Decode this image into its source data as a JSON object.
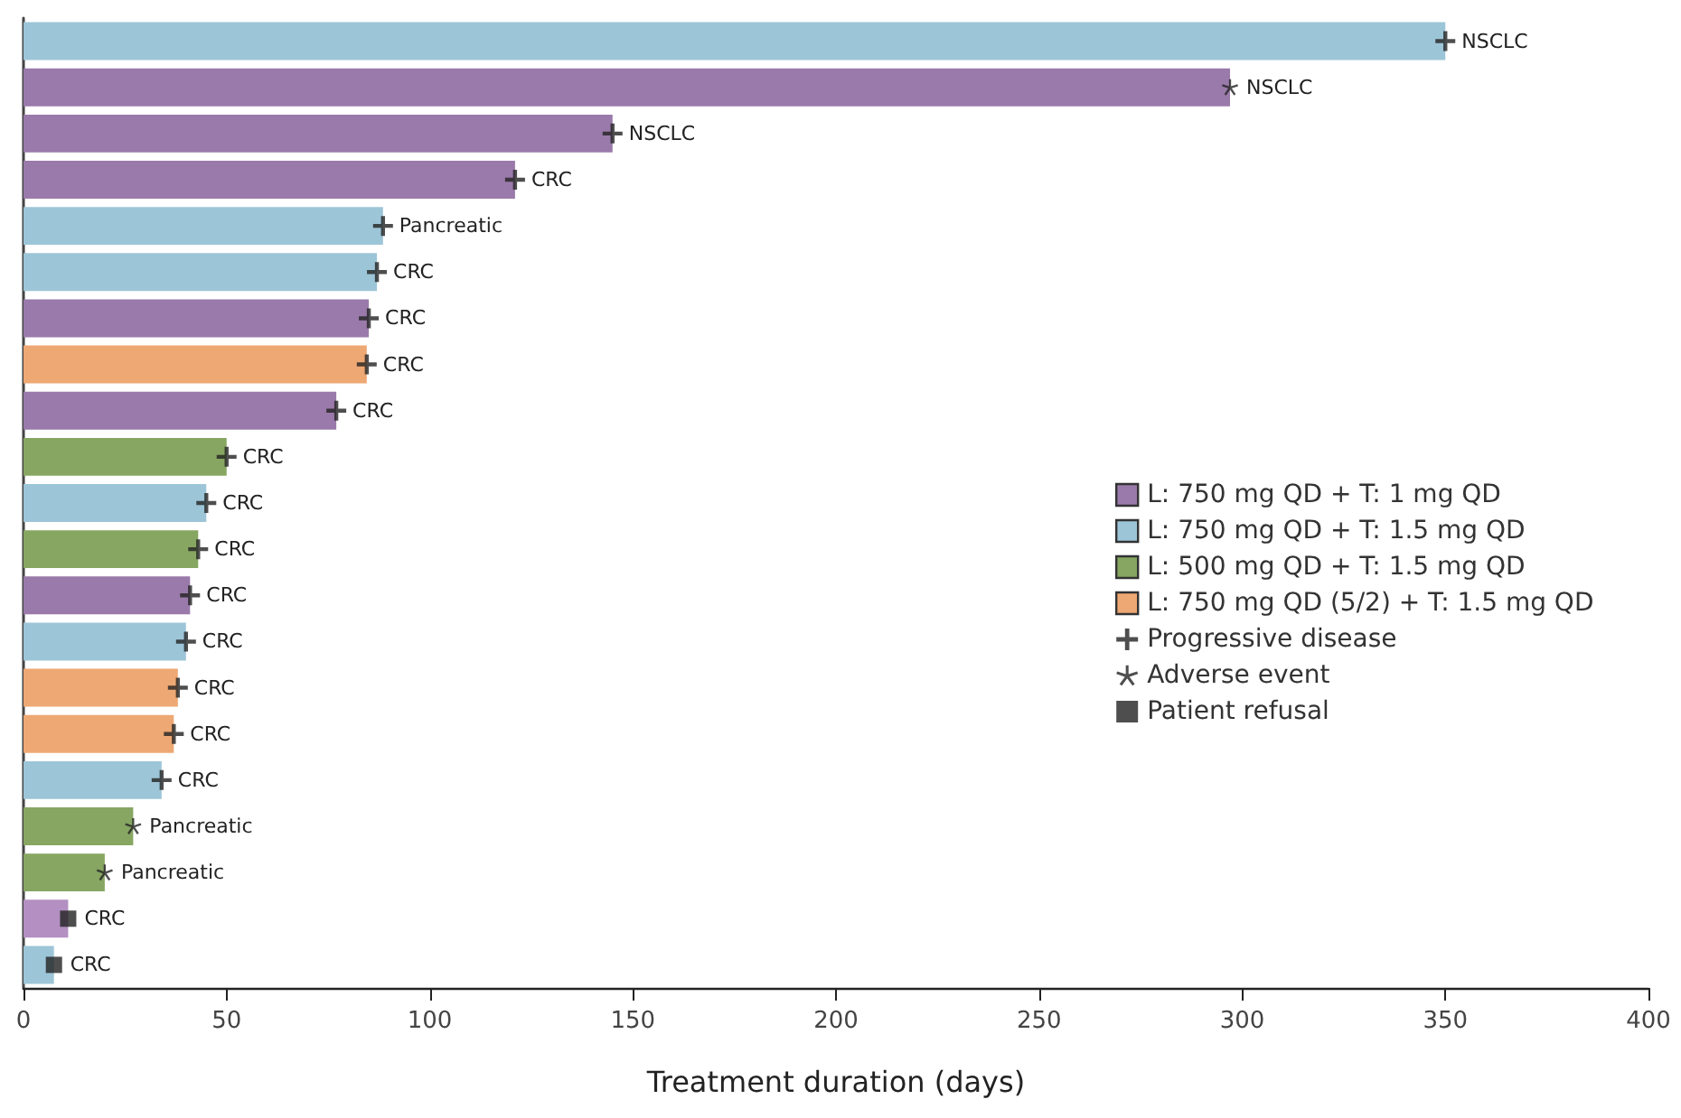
{
  "chart_data": {
    "type": "bar",
    "orientation": "horizontal",
    "xlabel": "Treatment duration (days)",
    "categories": [
      null,
      null,
      null,
      null,
      null,
      null,
      null,
      null,
      null,
      null,
      null,
      null,
      null,
      null,
      null,
      null,
      null,
      null,
      null,
      null,
      null
    ],
    "xlim": [
      0,
      400
    ],
    "xticks": [
      0,
      50,
      100,
      150,
      200,
      250,
      300,
      350,
      400
    ],
    "grid": false,
    "legend": "right",
    "series": [
      {
        "name": "L: 750 mg QD + T: 1 mg QD",
        "color": "#9a7aaa",
        "colors": [
          null,
          "#9a7aaa",
          "#9a7aaa",
          "#9a7aaa",
          null,
          null,
          "#9a7aaa",
          null,
          "#9a7aaa",
          null,
          null,
          null,
          "#9a7aaa",
          null,
          null,
          null,
          null,
          null,
          null,
          "#b490c2",
          null
        ],
        "values": [
          null,
          297,
          145,
          121,
          null,
          null,
          85,
          null,
          77,
          null,
          null,
          null,
          41,
          null,
          null,
          null,
          null,
          null,
          null,
          11,
          null
        ],
        "value_labels": [
          null,
          "NSCLC",
          "NSCLC",
          "CRC",
          null,
          null,
          "CRC",
          null,
          "CRC",
          null,
          null,
          null,
          "CRC",
          null,
          null,
          null,
          null,
          null,
          null,
          "CRC",
          null
        ]
      },
      {
        "name": "L: 750 mg QD + T: 1.5 mg QD",
        "color": "#9dc5d8",
        "values": [
          350,
          null,
          null,
          null,
          88.5,
          87,
          null,
          null,
          null,
          null,
          45,
          null,
          null,
          40,
          null,
          null,
          34,
          null,
          null,
          null,
          7.5
        ],
        "value_labels": [
          "NSCLC",
          null,
          null,
          null,
          "Pancreatic",
          "CRC",
          null,
          null,
          null,
          null,
          "CRC",
          null,
          null,
          "CRC",
          null,
          null,
          "CRC",
          null,
          null,
          null,
          "CRC"
        ]
      },
      {
        "name": "L: 500 mg QD + T: 1.5 mg QD",
        "color": "#86a662",
        "values": [
          null,
          null,
          null,
          null,
          null,
          null,
          null,
          null,
          null,
          50,
          null,
          43,
          null,
          null,
          null,
          null,
          null,
          27,
          20,
          null,
          null
        ],
        "value_labels": [
          null,
          null,
          null,
          null,
          null,
          null,
          null,
          null,
          null,
          "CRC",
          null,
          "CRC",
          null,
          null,
          null,
          null,
          null,
          "Pancreatic",
          "Pancreatic",
          null,
          null
        ]
      },
      {
        "name": "L: 750 mg QD (5/2) + T: 1.5 mg QD",
        "color": "#eea874",
        "values": [
          null,
          null,
          null,
          null,
          null,
          null,
          null,
          84.5,
          null,
          null,
          null,
          null,
          null,
          null,
          38,
          37,
          null,
          null,
          null,
          null,
          null
        ],
        "value_labels": [
          null,
          null,
          null,
          null,
          null,
          null,
          null,
          "CRC",
          null,
          null,
          null,
          null,
          null,
          null,
          "CRC",
          "CRC",
          null,
          null,
          null,
          null,
          null
        ]
      },
      {
        "name": "Progressive disease",
        "type": "scatter",
        "marker": "cross",
        "color": "#222222",
        "values": [
          350,
          null,
          145,
          121,
          88.5,
          87,
          85,
          84.5,
          77,
          50,
          45,
          43,
          41,
          40,
          38,
          37,
          34,
          null,
          null,
          null,
          null
        ]
      },
      {
        "name": "Adverse event",
        "type": "scatter",
        "marker": "star",
        "color": "#222222",
        "values": [
          null,
          297,
          null,
          null,
          null,
          null,
          null,
          null,
          null,
          null,
          null,
          null,
          null,
          null,
          null,
          null,
          null,
          27,
          20,
          null,
          null
        ]
      },
      {
        "name": "Patient refusal",
        "type": "scatter",
        "marker": "square",
        "color": "#222222",
        "values": [
          null,
          null,
          null,
          null,
          null,
          null,
          null,
          null,
          null,
          null,
          null,
          null,
          null,
          null,
          null,
          null,
          null,
          null,
          null,
          11,
          7.5
        ]
      }
    ]
  }
}
